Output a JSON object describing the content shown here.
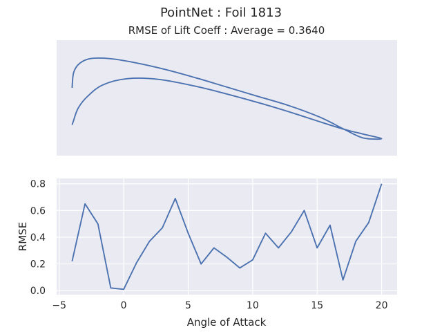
{
  "figure": {
    "suptitle": "PointNet   :   Foil 1813",
    "subtitle": "RMSE of Lift Coeff : Average = 0.3640"
  },
  "chart_data": [
    {
      "type": "line",
      "name": "airfoil-shape",
      "description_source": "unlabeled airfoil outline, axes hidden",
      "x": [
        0.0,
        0.005,
        0.02,
        0.05,
        0.1,
        0.18,
        0.28,
        0.4,
        0.5,
        0.6,
        0.7,
        0.8,
        0.88,
        0.94,
        1.0,
        0.94,
        0.88,
        0.8,
        0.7,
        0.6,
        0.5,
        0.4,
        0.3,
        0.2,
        0.12,
        0.06,
        0.025,
        0.005,
        0.0
      ],
      "y": [
        0.0,
        0.06,
        0.22,
        0.37,
        0.52,
        0.6,
        0.59,
        0.5,
        0.4,
        0.29,
        0.17,
        0.04,
        -0.06,
        -0.12,
        -0.18,
        -0.17,
        -0.06,
        0.1,
        0.25,
        0.37,
        0.49,
        0.61,
        0.72,
        0.81,
        0.86,
        0.86,
        0.8,
        0.68,
        0.48
      ],
      "xlim": [
        -0.05,
        1.05
      ],
      "ylim": [
        -0.4,
        1.1
      ]
    },
    {
      "type": "line",
      "xlabel": "Angle of Attack",
      "ylabel": "RMSE",
      "x": [
        -4,
        -3,
        -2,
        -1,
        0,
        1,
        2,
        3,
        4,
        5,
        6,
        7,
        8,
        9,
        10,
        11,
        12,
        13,
        14,
        15,
        16,
        17,
        18,
        19,
        20
      ],
      "y": [
        0.22,
        0.65,
        0.5,
        0.02,
        0.01,
        0.21,
        0.37,
        0.47,
        0.69,
        0.43,
        0.2,
        0.32,
        0.25,
        0.17,
        0.23,
        0.43,
        0.32,
        0.44,
        0.6,
        0.32,
        0.49,
        0.08,
        0.37,
        0.51,
        0.8
      ],
      "xticks": [
        -5,
        0,
        5,
        10,
        15,
        20
      ],
      "xtick_labels": [
        "−5",
        "0",
        "5",
        "10",
        "15",
        "20"
      ],
      "yticks": [
        0.0,
        0.2,
        0.4,
        0.6,
        0.8
      ],
      "ytick_labels": [
        "0.0",
        "0.2",
        "0.4",
        "0.6",
        "0.8"
      ],
      "xlim": [
        -5.2,
        21.2
      ],
      "ylim": [
        -0.03,
        0.84
      ],
      "grid": true,
      "color": "#4c72b0",
      "background": "#eaeaf2"
    }
  ]
}
